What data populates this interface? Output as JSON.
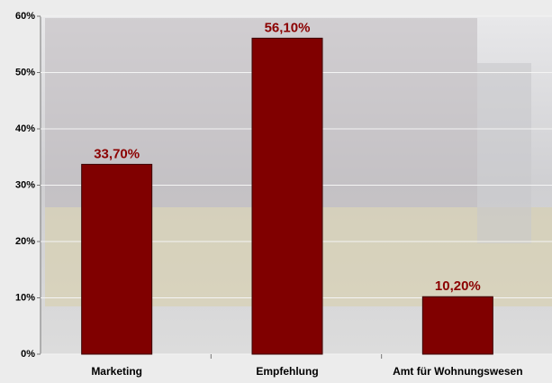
{
  "chart_data": {
    "type": "bar",
    "categories": [
      "Marketing",
      "Empfehlung",
      "Amt für Wohnungswesen"
    ],
    "values": [
      33.7,
      56.1,
      10.2
    ],
    "value_labels": [
      "33,70%",
      "56,10%",
      "10,20%"
    ],
    "color": "#800000",
    "ylim": [
      0,
      60
    ],
    "yticks": [
      {
        "value": 0,
        "label": "0%"
      },
      {
        "value": 10,
        "label": "10%"
      },
      {
        "value": 20,
        "label": "20%"
      },
      {
        "value": 30,
        "label": "30%"
      },
      {
        "value": 40,
        "label": "40%"
      },
      {
        "value": 50,
        "label": "50%"
      },
      {
        "value": 60,
        "label": "60%"
      }
    ],
    "grid": true
  }
}
